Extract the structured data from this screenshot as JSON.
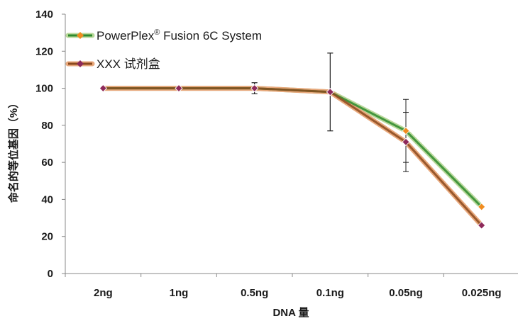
{
  "chart_data": {
    "type": "line",
    "title": "",
    "xlabel": "DNA 量",
    "ylabel": "命名的等位基因（%）",
    "categories": [
      "2ng",
      "1ng",
      "0.5ng",
      "0.1ng",
      "0.05ng",
      "0.025ng"
    ],
    "ylim": [
      0,
      140
    ],
    "yticks": [
      0,
      20,
      40,
      60,
      80,
      100,
      120,
      140
    ],
    "grid": false,
    "legend_position": "top-left",
    "series": [
      {
        "name": "PowerPlex® Fusion 6C System",
        "legend_main": "PowerPlex",
        "legend_sup": "®",
        "legend_rest": " Fusion 6C System",
        "values": [
          100,
          100,
          100,
          98,
          77,
          36
        ],
        "errors": [
          0,
          0,
          3,
          21,
          17,
          0
        ],
        "line_color": "#2e8b2e",
        "line_halo": "#b9d89a",
        "marker_color": "#f08c1e"
      },
      {
        "name": "XXX 试剂盒",
        "values": [
          100,
          100,
          100,
          98,
          71,
          26
        ],
        "errors": [
          0,
          0,
          3,
          21,
          16,
          0
        ],
        "line_color": "#8b4a1e",
        "line_halo": "#e8a87c",
        "marker_color": "#8e2a5a"
      }
    ]
  }
}
